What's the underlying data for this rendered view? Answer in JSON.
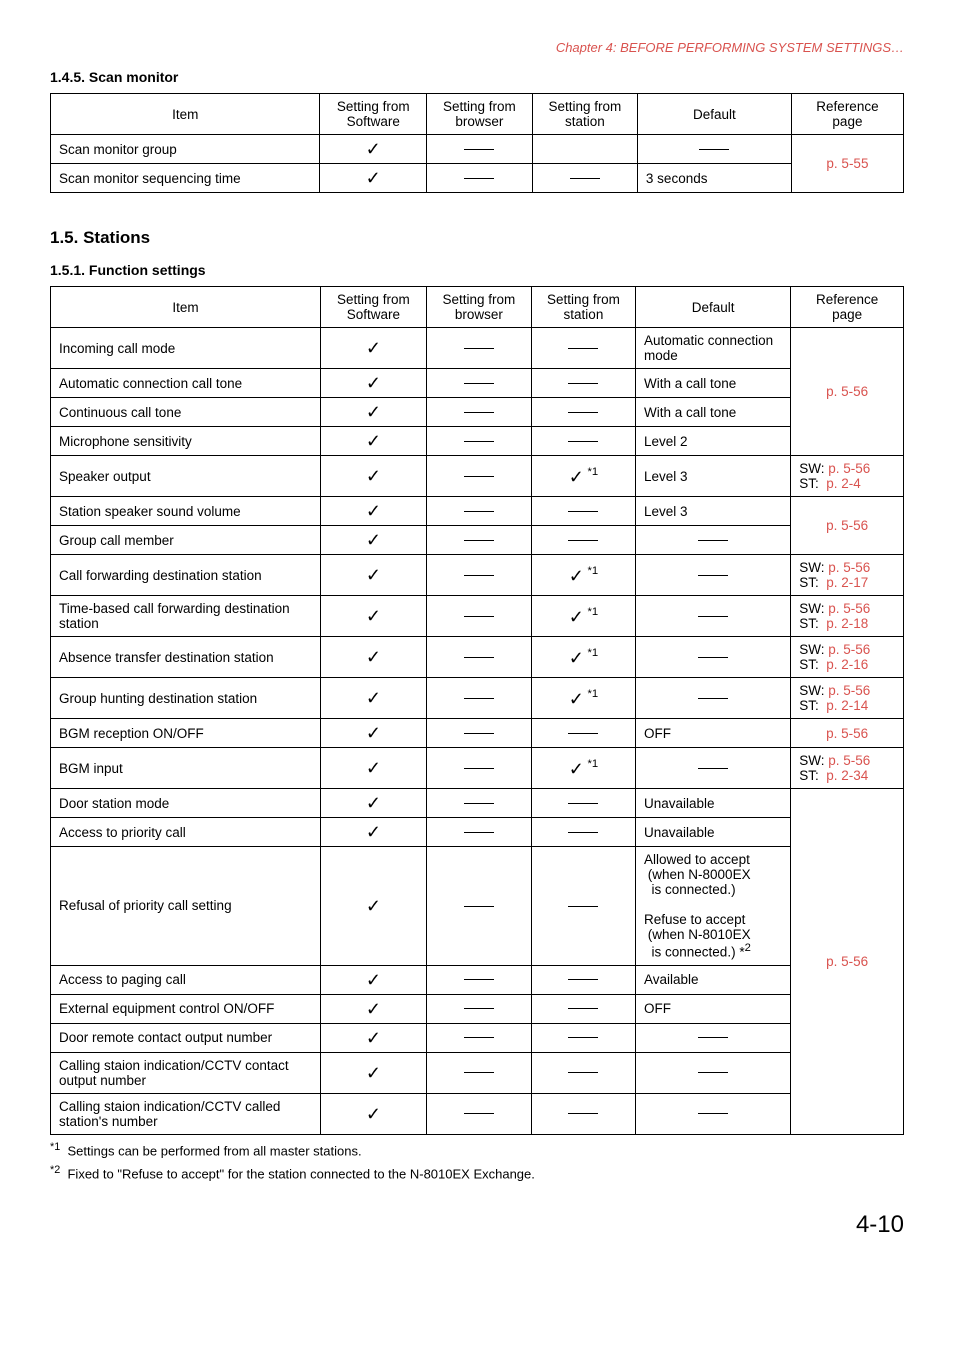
{
  "chapterHeader": "Chapter 4:  BEFORE PERFORMING SYSTEM SETTINGS…",
  "scanMonitor": {
    "heading": "1.4.5. Scan monitor",
    "headers": [
      "Item",
      "Setting from Software",
      "Setting from browser",
      "Setting from station",
      "Default",
      "Reference page"
    ],
    "rows": [
      {
        "item": "Scan monitor group",
        "sw": "check",
        "br": "dash",
        "st": "",
        "def": "dash",
        "ref": "",
        "refRowspan": true
      },
      {
        "item": "Scan monitor sequencing time",
        "sw": "check",
        "br": "dash",
        "st": "dash",
        "def": "3 seconds"
      }
    ],
    "refMerged": "p. 5-55"
  },
  "stations": {
    "sectionHeading": "1.5. Stations",
    "subHeading": "1.5.1. Function settings",
    "headers": [
      "Item",
      "Setting from Software",
      "Setting from browser",
      "Setting from station",
      "Default",
      "Reference page"
    ],
    "rows": [
      {
        "item": "Incoming call mode",
        "sw": "check",
        "br": "dash",
        "st": "dash",
        "def": "Automatic connection mode",
        "ref": "merge1"
      },
      {
        "item": "Automatic connection call tone",
        "sw": "check",
        "br": "dash",
        "st": "dash",
        "def": "With a call tone",
        "ref": "merge1link"
      },
      {
        "item": "Continuous call tone",
        "sw": "check",
        "br": "dash",
        "st": "dash",
        "def": "With a call tone",
        "ref": "merge1"
      },
      {
        "item": "Microphone sensitivity",
        "sw": "check",
        "br": "dash",
        "st": "dash",
        "def": "Level 2",
        "ref": "merge1"
      },
      {
        "item": "Speaker output",
        "sw": "check",
        "br": "dash",
        "st": "check*1",
        "def": "Level 3",
        "ref": "SW: p. 5-56\nST:  p. 2-4"
      },
      {
        "item": "Station speaker sound volume",
        "sw": "check",
        "br": "dash",
        "st": "dash",
        "def": "Level 3",
        "ref": "merge2"
      },
      {
        "item": "Group call member",
        "sw": "check",
        "br": "dash",
        "st": "dash",
        "def": "dash",
        "ref": "merge2link"
      },
      {
        "item": "Call forwarding destination station",
        "sw": "check",
        "br": "dash",
        "st": "check*1",
        "def": "dash",
        "ref": "SW: p. 5-56\nST:  p. 2-17"
      },
      {
        "item": "Time-based call forwarding destination station",
        "sw": "check",
        "br": "dash",
        "st": "check*1",
        "def": "dash",
        "ref": "SW: p. 5-56\nST:  p. 2-18"
      },
      {
        "item": "Absence transfer destination station",
        "sw": "check",
        "br": "dash",
        "st": "check*1",
        "def": "dash",
        "ref": "SW: p. 5-56\nST:  p. 2-16"
      },
      {
        "item": "Group hunting destination station",
        "sw": "check",
        "br": "dash",
        "st": "check*1",
        "def": "dash",
        "ref": "SW: p. 5-56\nST:  p. 2-14"
      },
      {
        "item": "BGM reception ON/OFF",
        "sw": "check",
        "br": "dash",
        "st": "dash",
        "def": "OFF",
        "ref": "p. 5-56",
        "refSingle": true
      },
      {
        "item": "BGM input",
        "sw": "check",
        "br": "dash",
        "st": "check*1",
        "def": "dash",
        "ref": "SW: p. 5-56\nST:  p. 2-34"
      },
      {
        "item": "Door station mode",
        "sw": "check",
        "br": "dash",
        "st": "dash",
        "def": "Unavailable",
        "ref": "merge3"
      },
      {
        "item": "Access to priority call",
        "sw": "check",
        "br": "dash",
        "st": "dash",
        "def": "Unavailable",
        "ref": "merge3"
      },
      {
        "item": "Refusal of priority call setting",
        "sw": "check",
        "br": "dash",
        "st": "dash",
        "def": "Allowed to accept (when N-8000EX is connected.)\nRefuse to accept (when N-8010EX is connected.) *2",
        "ref": "merge3"
      },
      {
        "item": "Access to paging call",
        "sw": "check",
        "br": "dash",
        "st": "dash",
        "def": "Available",
        "ref": "merge3link"
      },
      {
        "item": "External equipment control ON/OFF",
        "sw": "check",
        "br": "dash",
        "st": "dash",
        "def": "OFF",
        "ref": "merge3"
      },
      {
        "item": "Door remote contact output number",
        "sw": "check",
        "br": "dash",
        "st": "dash",
        "def": "dash",
        "ref": "merge3"
      },
      {
        "item": "Calling staion indication/CCTV contact output number",
        "sw": "check",
        "br": "dash",
        "st": "dash",
        "def": "dash",
        "ref": "merge3"
      },
      {
        "item": "Calling staion indication/CCTV called station's number",
        "sw": "check",
        "br": "dash",
        "st": "dash",
        "def": "dash",
        "ref": "merge3"
      }
    ],
    "merge1Ref": "p. 5-56",
    "merge2Ref": "p. 5-56",
    "merge3Ref": "p. 5-56"
  },
  "footnotes": [
    "Settings can be performed from all master stations.",
    "Fixed to \"Refuse to accept\" for the station connected to the N-8010EX Exchange."
  ],
  "footnoteSup": [
    "*1",
    "*2"
  ],
  "pageNumber": "4-10"
}
